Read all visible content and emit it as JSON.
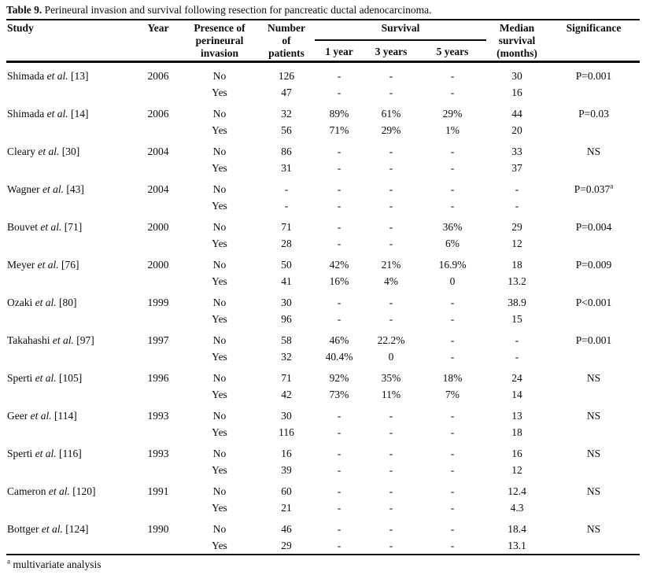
{
  "title": {
    "label": "Table 9.",
    "text": "Perineural invasion and survival following resection for pancreatic ductal adenocarcinoma."
  },
  "table": {
    "header": {
      "study": "Study",
      "year": "Year",
      "presence": "Presence of\nperineural\ninvasion",
      "patients": "Number\nof\npatients",
      "survival": "Survival",
      "survival_cols": [
        "1 year",
        "3 years",
        "5 years"
      ],
      "median": "Median\nsurvival\n(months)",
      "significance": "Significance"
    },
    "rows": [
      {
        "author": "Shimada",
        "etal": "et al.",
        "ref": "[13]",
        "year": "2006",
        "significance": "P=0.001",
        "significance_sup": "",
        "sub": [
          {
            "presence": "No",
            "patients": "126",
            "y1": "-",
            "y3": "-",
            "y5": "-",
            "median": "30"
          },
          {
            "presence": "Yes",
            "patients": "47",
            "y1": "-",
            "y3": "-",
            "y5": "-",
            "median": "16"
          }
        ]
      },
      {
        "author": "Shimada",
        "etal": "et al.",
        "ref": "[14]",
        "year": "2006",
        "significance": "P=0.03",
        "significance_sup": "",
        "sub": [
          {
            "presence": "No",
            "patients": "32",
            "y1": "89%",
            "y3": "61%",
            "y5": "29%",
            "median": "44"
          },
          {
            "presence": "Yes",
            "patients": "56",
            "y1": "71%",
            "y3": "29%",
            "y5": "1%",
            "median": "20"
          }
        ]
      },
      {
        "author": "Cleary",
        "etal": "et al.",
        "ref": "[30]",
        "year": "2004",
        "significance": "NS",
        "significance_sup": "",
        "sub": [
          {
            "presence": "No",
            "patients": "86",
            "y1": "-",
            "y3": "-",
            "y5": "-",
            "median": "33"
          },
          {
            "presence": "Yes",
            "patients": "31",
            "y1": "-",
            "y3": "-",
            "y5": "-",
            "median": "37"
          }
        ]
      },
      {
        "author": "Wagner",
        "etal": "et al.",
        "ref": "[43]",
        "year": "2004",
        "significance": "P=0.037",
        "significance_sup": "a",
        "sub": [
          {
            "presence": "No",
            "patients": "-",
            "y1": "-",
            "y3": "-",
            "y5": "-",
            "median": "-"
          },
          {
            "presence": "Yes",
            "patients": "-",
            "y1": "-",
            "y3": "-",
            "y5": "-",
            "median": "-"
          }
        ]
      },
      {
        "author": "Bouvet",
        "etal": "et al.",
        "ref": "[71]",
        "year": "2000",
        "significance": "P=0.004",
        "significance_sup": "",
        "sub": [
          {
            "presence": "No",
            "patients": "71",
            "y1": "-",
            "y3": "-",
            "y5": "36%",
            "median": "29"
          },
          {
            "presence": "Yes",
            "patients": "28",
            "y1": "-",
            "y3": "-",
            "y5": "6%",
            "median": "12"
          }
        ]
      },
      {
        "author": "Meyer",
        "etal": "et al.",
        "ref": "[76]",
        "year": "2000",
        "significance": "P=0.009",
        "significance_sup": "",
        "sub": [
          {
            "presence": "No",
            "patients": "50",
            "y1": "42%",
            "y3": "21%",
            "y5": "16.9%",
            "median": "18"
          },
          {
            "presence": "Yes",
            "patients": "41",
            "y1": "16%",
            "y3": "4%",
            "y5": "0",
            "median": "13.2"
          }
        ]
      },
      {
        "author": "Ozaki",
        "etal": "et al.",
        "ref": "[80]",
        "year": "1999",
        "significance": "P<0.001",
        "significance_sup": "",
        "sub": [
          {
            "presence": "No",
            "patients": "30",
            "y1": "-",
            "y3": "-",
            "y5": "-",
            "median": "38.9"
          },
          {
            "presence": "Yes",
            "patients": "96",
            "y1": "-",
            "y3": "-",
            "y5": "-",
            "median": "15"
          }
        ]
      },
      {
        "author": "Takahashi",
        "etal": "et al.",
        "ref": "[97]",
        "year": "1997",
        "significance": "P=0.001",
        "significance_sup": "",
        "sub": [
          {
            "presence": "No",
            "patients": "58",
            "y1": "46%",
            "y3": "22.2%",
            "y5": "-",
            "median": "-"
          },
          {
            "presence": "Yes",
            "patients": "32",
            "y1": "40.4%",
            "y3": "0",
            "y5": "-",
            "median": "-"
          }
        ]
      },
      {
        "author": "Sperti",
        "etal": "et al.",
        "ref": "[105]",
        "year": "1996",
        "significance": "NS",
        "significance_sup": "",
        "sub": [
          {
            "presence": "No",
            "patients": "71",
            "y1": "92%",
            "y3": "35%",
            "y5": "18%",
            "median": "24"
          },
          {
            "presence": "Yes",
            "patients": "42",
            "y1": "73%",
            "y3": "11%",
            "y5": "7%",
            "median": "14"
          }
        ]
      },
      {
        "author": "Geer",
        "etal": "et al.",
        "ref": "[114]",
        "year": "1993",
        "significance": "NS",
        "significance_sup": "",
        "sub": [
          {
            "presence": "No",
            "patients": "30",
            "y1": "-",
            "y3": "-",
            "y5": "-",
            "median": "13"
          },
          {
            "presence": "Yes",
            "patients": "116",
            "y1": "-",
            "y3": "-",
            "y5": "-",
            "median": "18"
          }
        ]
      },
      {
        "author": "Sperti",
        "etal": "et al.",
        "ref": "[116]",
        "year": "1993",
        "significance": "NS",
        "significance_sup": "",
        "sub": [
          {
            "presence": "No",
            "patients": "16",
            "y1": "-",
            "y3": "-",
            "y5": "-",
            "median": "16"
          },
          {
            "presence": "Yes",
            "patients": "39",
            "y1": "-",
            "y3": "-",
            "y5": "-",
            "median": "12"
          }
        ]
      },
      {
        "author": "Cameron",
        "etal": "et al.",
        "ref": "[120]",
        "year": "1991",
        "significance": "NS",
        "significance_sup": "",
        "sub": [
          {
            "presence": "No",
            "patients": "60",
            "y1": "-",
            "y3": "-",
            "y5": "-",
            "median": "12.4"
          },
          {
            "presence": "Yes",
            "patients": "21",
            "y1": "-",
            "y3": "-",
            "y5": "-",
            "median": "4.3"
          }
        ]
      },
      {
        "author": "Bottger",
        "etal": "et al.",
        "ref": "[124]",
        "year": "1990",
        "significance": "NS",
        "significance_sup": "",
        "sub": [
          {
            "presence": "No",
            "patients": "46",
            "y1": "-",
            "y3": "-",
            "y5": "-",
            "median": "18.4"
          },
          {
            "presence": "Yes",
            "patients": "29",
            "y1": "-",
            "y3": "-",
            "y5": "-",
            "median": "13.1"
          }
        ]
      }
    ]
  },
  "footnote": {
    "sup": "a",
    "text": "multivariate analysis"
  }
}
